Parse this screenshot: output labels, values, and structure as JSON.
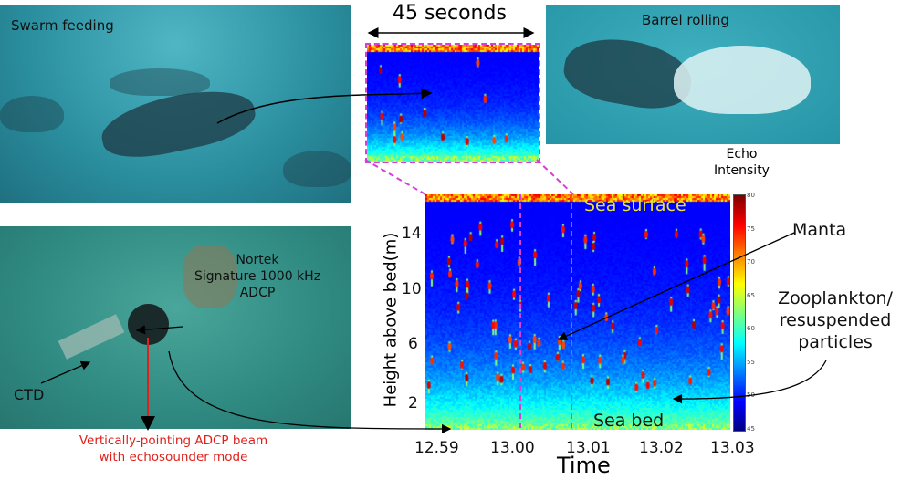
{
  "photos": {
    "swarm": {
      "title": "Swarm feeding"
    },
    "barrel": {
      "title": "Barrel rolling"
    },
    "instrument": {
      "nortek": "Nortek\nSignature 1000 kHz\nADCP",
      "ctd": "CTD",
      "beam_note": "Vertically-pointing ADCP beam\nwith echosounder mode"
    }
  },
  "inset": {
    "duration_label": "45 seconds"
  },
  "echogram": {
    "ylabel": "Height above bed(m)",
    "xlabel": "Time",
    "yticks": [
      "14",
      "10",
      "6",
      "2"
    ],
    "xticks": [
      "12.59",
      "13.00",
      "13.01",
      "13.02",
      "13.03"
    ],
    "surface_label": "Sea surface",
    "bed_label": "Sea bed",
    "colorbar": {
      "title": "Echo\nIntensity",
      "ticks": [
        "80",
        "75",
        "70",
        "65",
        "60",
        "55",
        "50",
        "45"
      ]
    }
  },
  "annotations": {
    "manta": "Manta",
    "zooplankton": "Zooplankton/\nresuspended\nparticles"
  },
  "colors": {
    "highlight": "#d63fd6",
    "note": "#e0201b",
    "surface_text": "#e8e23a"
  }
}
